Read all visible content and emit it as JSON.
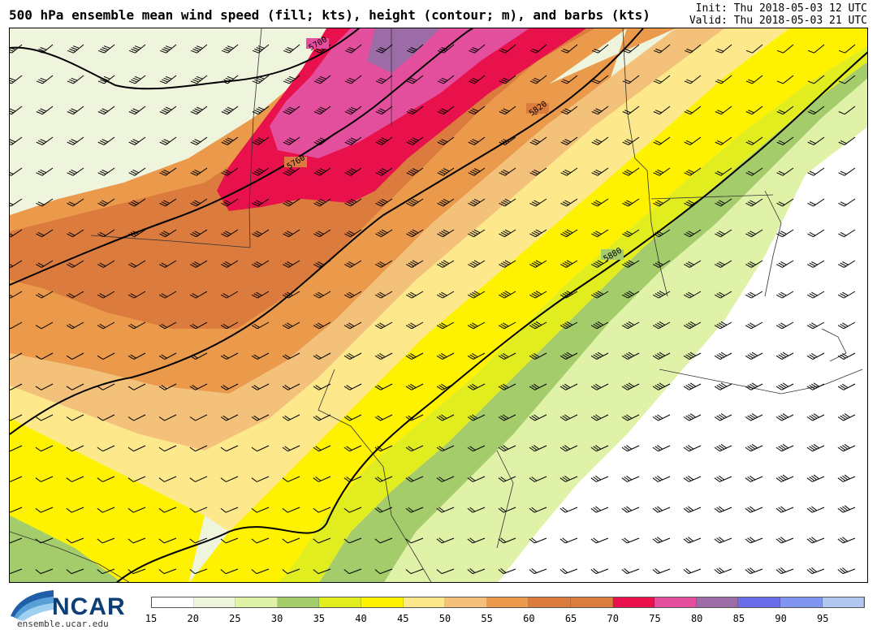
{
  "header": {
    "title": "500 hPa ensemble mean wind speed (fill; kts), height (contour; m), and barbs (kts)",
    "init": "Init: Thu 2018-05-03 12 UTC",
    "valid": "Valid: Thu 2018-05-03 21 UTC"
  },
  "logo": {
    "text": "NCAR",
    "url": "ensemble.ucar.edu"
  },
  "colorbar": {
    "ticks": [
      "15",
      "20",
      "25",
      "30",
      "35",
      "40",
      "45",
      "50",
      "55",
      "60",
      "65",
      "70",
      "75",
      "80",
      "85",
      "90",
      "95"
    ],
    "colors": [
      "#ffffff",
      "#eef5dc",
      "#dff2a8",
      "#a5cc6b",
      "#e1ed1e",
      "#fef200",
      "#fde98c",
      "#f3c17a",
      "#eb9a4b",
      "#dc7b3e",
      "#da7d3d",
      "#e8114c",
      "#e34f9d",
      "#9b6ca6",
      "#6a6cea",
      "#7f95ef",
      "#b1c7ef"
    ]
  },
  "map": {
    "contours": [
      {
        "label": "5700",
        "color": "#000000"
      },
      {
        "label": "5760",
        "color": "#000000"
      },
      {
        "label": "5820",
        "color": "#000000"
      },
      {
        "label": "5880",
        "color": "#000000"
      }
    ],
    "wind_speed_bands_kts": [
      15,
      20,
      25,
      30,
      35,
      40,
      45,
      50,
      55,
      60,
      65,
      70,
      75,
      80
    ]
  }
}
